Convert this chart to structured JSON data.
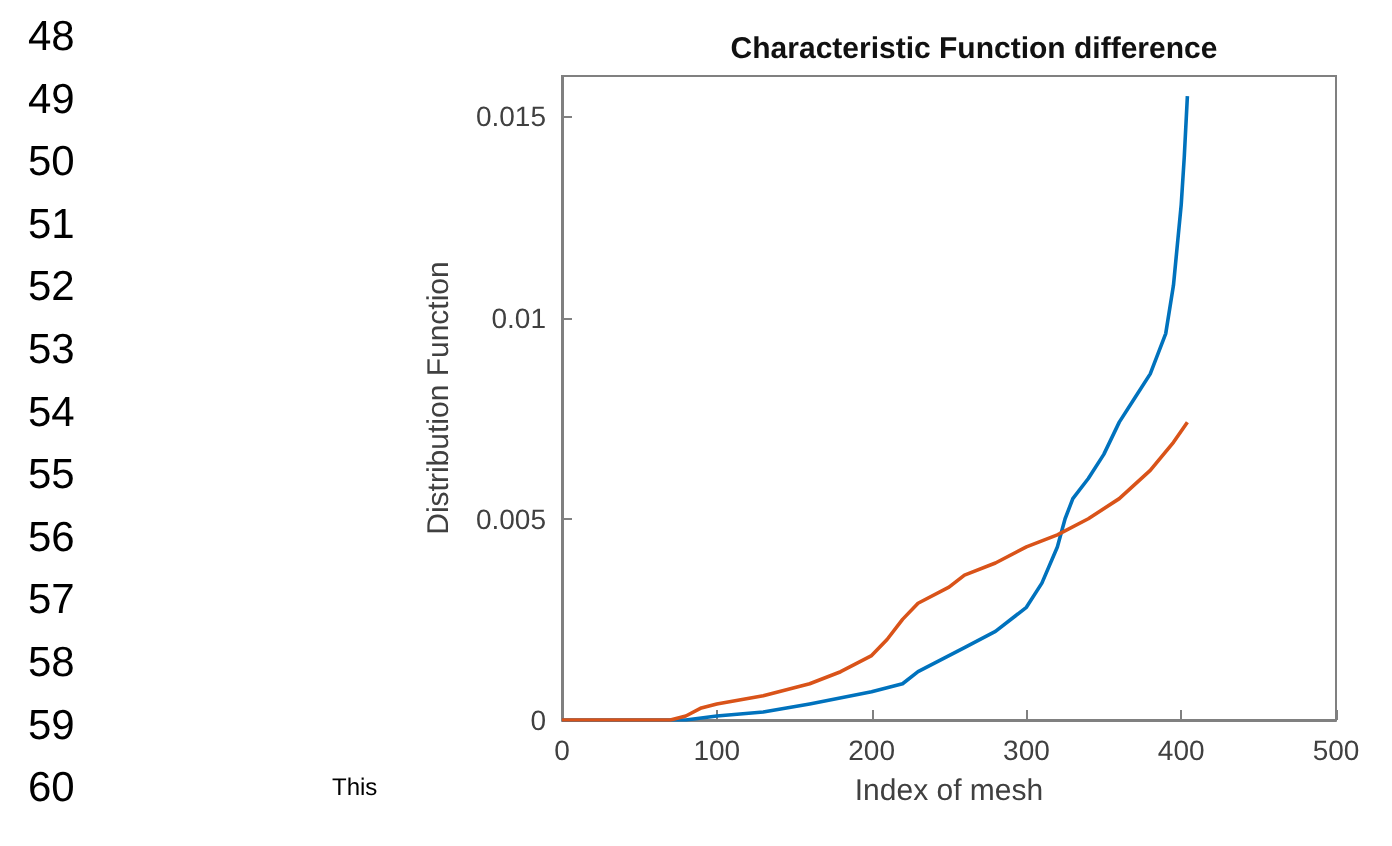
{
  "chart_data": {
    "type": "line",
    "title": "Characteristic Function difference",
    "xlabel": "Index of mesh",
    "ylabel": "Distribution Function",
    "xlim": [
      0,
      500
    ],
    "xticks": [
      0,
      100,
      200,
      300,
      400,
      500
    ],
    "ylim": [
      0,
      0.016
    ],
    "yticks": [
      0,
      0.005,
      0.01,
      0.015
    ],
    "grid": false,
    "marker": "none",
    "line_style": "solid",
    "annotations": [
      "48",
      "49",
      "50",
      "51",
      "52",
      "53",
      "54",
      "55",
      "56",
      "57",
      "58",
      "59",
      "60",
      "This"
    ],
    "series": [
      {
        "color": "#0072bd",
        "x": [
          0,
          60,
          80,
          100,
          130,
          160,
          200,
          220,
          230,
          240,
          260,
          280,
          300,
          310,
          320,
          325,
          330,
          340,
          350,
          360,
          370,
          380,
          390,
          395,
          400,
          402,
          404
        ],
        "values": [
          0,
          0,
          0,
          0.0001,
          0.0002,
          0.0004,
          0.0007,
          0.0009,
          0.0012,
          0.0014,
          0.0018,
          0.0022,
          0.0028,
          0.0034,
          0.0043,
          0.005,
          0.0055,
          0.006,
          0.0066,
          0.0074,
          0.008,
          0.0086,
          0.0096,
          0.0108,
          0.0128,
          0.014,
          0.0155
        ]
      },
      {
        "color": "#d95319",
        "x": [
          0,
          70,
          80,
          90,
          100,
          130,
          160,
          180,
          200,
          210,
          220,
          230,
          250,
          260,
          280,
          300,
          320,
          340,
          360,
          380,
          395,
          404
        ],
        "values": [
          0,
          0,
          0.0001,
          0.0003,
          0.0004,
          0.0006,
          0.0009,
          0.0012,
          0.0016,
          0.002,
          0.0025,
          0.0029,
          0.0033,
          0.0036,
          0.0039,
          0.0043,
          0.0046,
          0.005,
          0.0055,
          0.0062,
          0.0069,
          0.0074
        ]
      }
    ]
  }
}
